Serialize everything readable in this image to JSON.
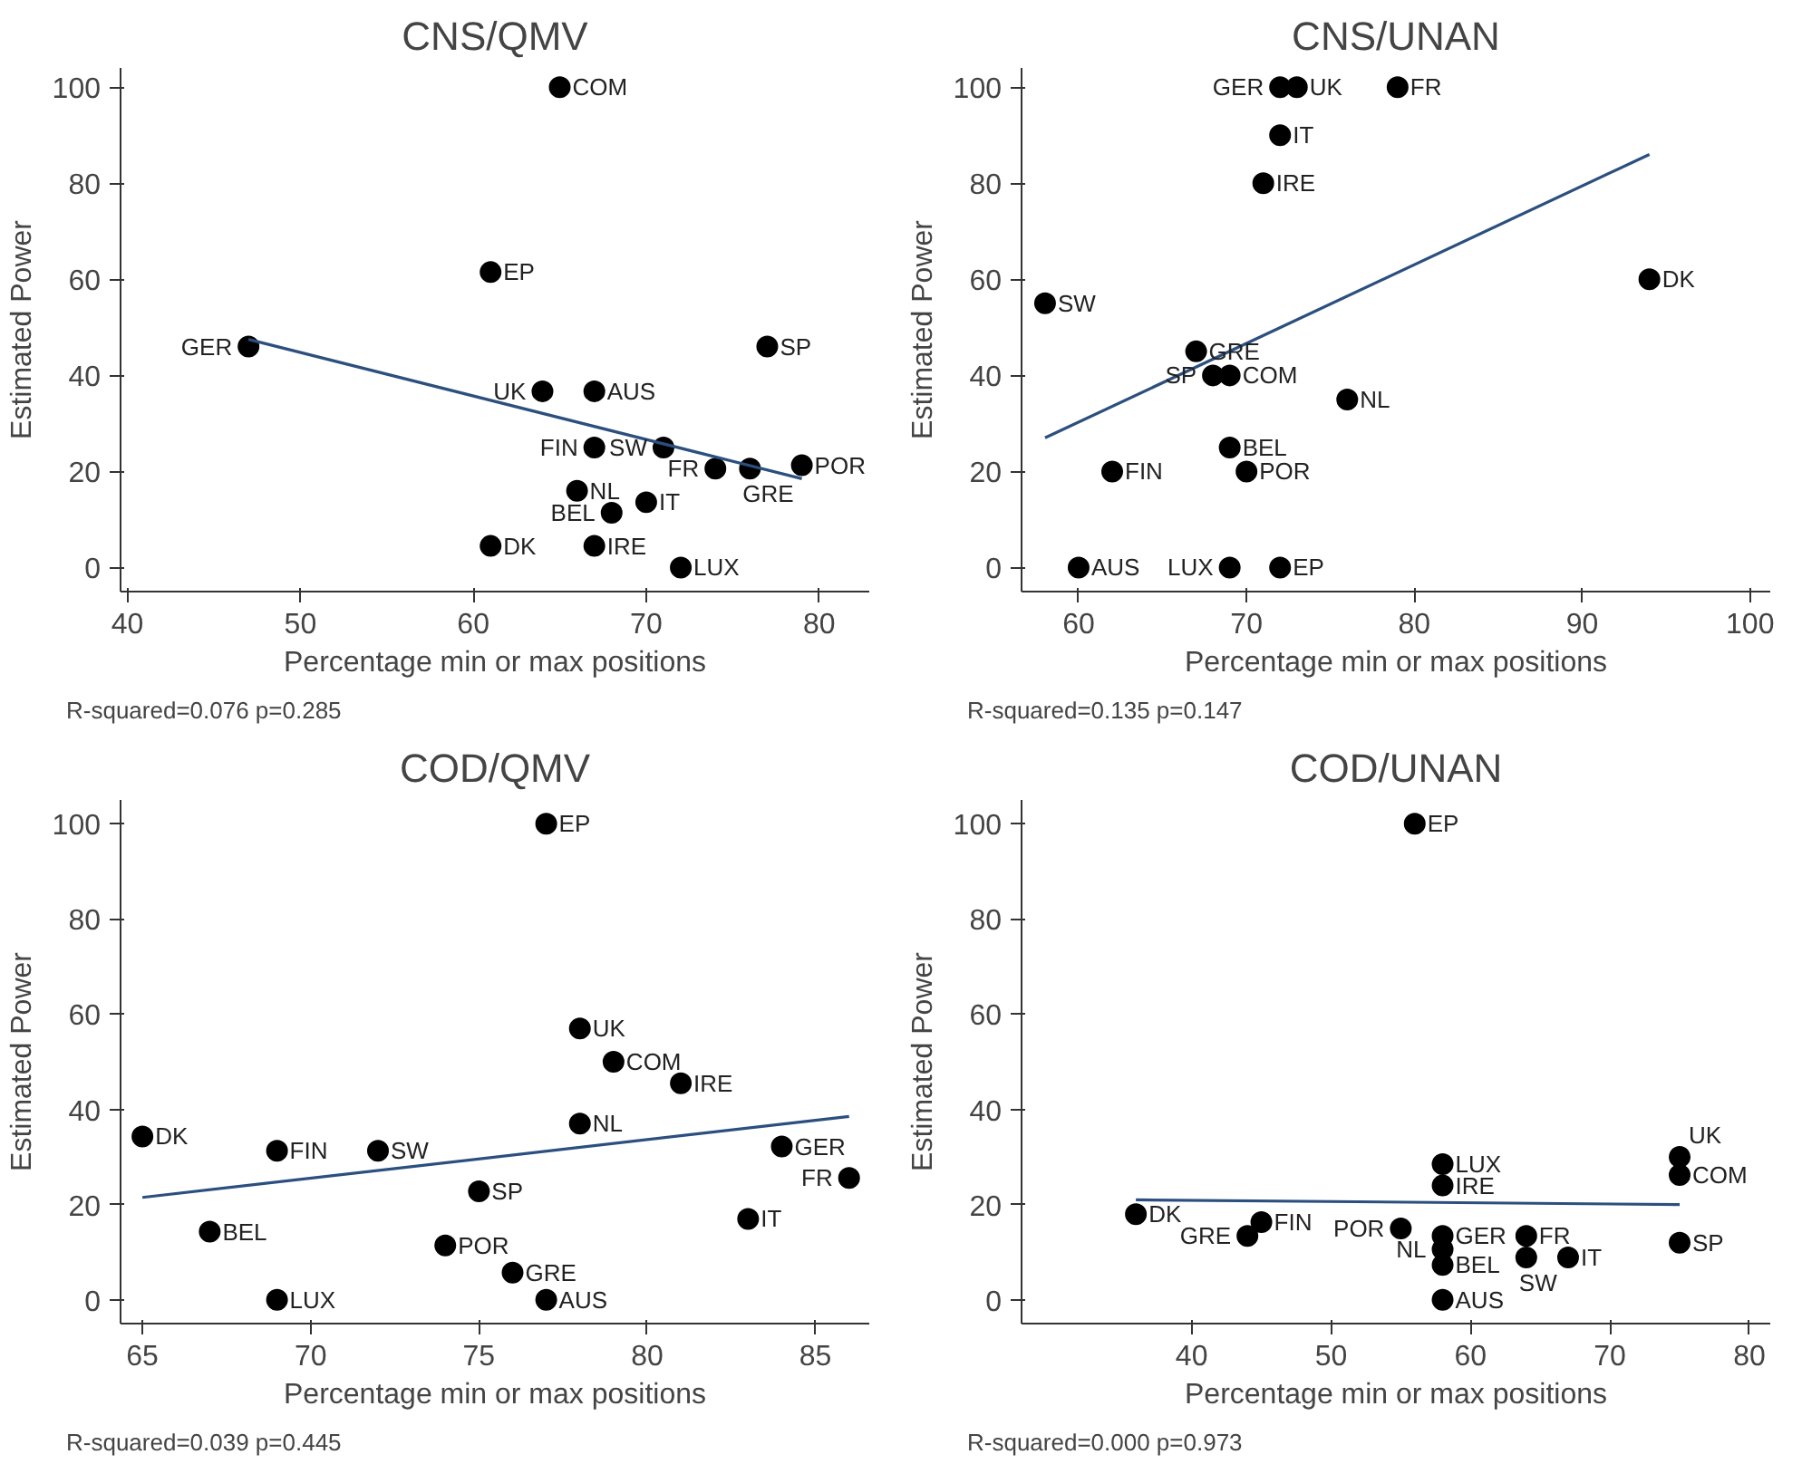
{
  "chart_data": [
    {
      "type": "scatter",
      "title": "CNS/QMV",
      "xlabel": "Percentage min or max positions",
      "ylabel": "Estimated Power",
      "xlim": [
        39.6,
        82.9
      ],
      "ylim": [
        -5,
        104
      ],
      "xticks": [
        40,
        50,
        60,
        70,
        80
      ],
      "yticks": [
        0,
        20,
        40,
        60,
        80,
        100
      ],
      "grid": false,
      "marker": "circle",
      "series": [
        {
          "type": "scatter",
          "color": "#000000",
          "x": [
            65,
            61,
            47,
            77,
            64,
            67,
            67,
            71,
            74,
            76,
            79,
            66,
            70,
            68,
            61,
            67,
            72
          ],
          "values": [
            100,
            61.5,
            46,
            46,
            36.7,
            36.7,
            25,
            25,
            20.6,
            20.6,
            21.3,
            16,
            13.6,
            11.4,
            4.5,
            4.5,
            0
          ]
        },
        {
          "type": "line",
          "marker": "none",
          "color": "#2b4f7e",
          "x": [
            47,
            79
          ],
          "values": [
            47.5,
            18.5
          ]
        }
      ],
      "annotations": [
        {
          "text": "COM",
          "x": 65,
          "y": 100
        },
        {
          "text": "EP",
          "x": 61,
          "y": 61.5
        },
        {
          "text": "GER",
          "x": 47,
          "y": 46
        },
        {
          "text": "SP",
          "x": 77,
          "y": 46
        },
        {
          "text": "UK",
          "x": 64,
          "y": 36.7
        },
        {
          "text": "AUS",
          "x": 67,
          "y": 36.7
        },
        {
          "text": "FIN",
          "x": 67,
          "y": 25
        },
        {
          "text": "SW",
          "x": 71,
          "y": 25
        },
        {
          "text": "FR",
          "x": 74,
          "y": 20.6
        },
        {
          "text": "GRE",
          "x": 76,
          "y": 20.6
        },
        {
          "text": "POR",
          "x": 79,
          "y": 21.3
        },
        {
          "text": "NL",
          "x": 66,
          "y": 16
        },
        {
          "text": "IT",
          "x": 70,
          "y": 13.6
        },
        {
          "text": "BEL",
          "x": 68,
          "y": 11.4
        },
        {
          "text": "DK",
          "x": 61,
          "y": 4.5
        },
        {
          "text": "IRE",
          "x": 67,
          "y": 4.5
        },
        {
          "text": "LUX",
          "x": 72,
          "y": 0
        },
        "R-squared=0.076  p=0.285"
      ]
    },
    {
      "type": "scatter",
      "title": "CNS/UNAN",
      "xlabel": "Percentage min or max positions",
      "ylabel": "Estimated Power",
      "xlim": [
        56.6,
        101.2
      ],
      "ylim": [
        -5,
        104
      ],
      "xticks": [
        60,
        70,
        80,
        90,
        100
      ],
      "yticks": [
        0,
        20,
        40,
        60,
        80,
        100
      ],
      "grid": false,
      "marker": "circle",
      "series": [
        {
          "type": "scatter",
          "color": "#000000",
          "x": [
            72,
            73,
            79,
            72,
            71,
            94,
            58,
            67,
            68,
            69,
            76,
            69,
            62,
            70,
            60,
            69,
            72
          ],
          "values": [
            100,
            100,
            100,
            90,
            80,
            60,
            55,
            45,
            40,
            40,
            35,
            25,
            20,
            20,
            0,
            0,
            0
          ]
        },
        {
          "type": "line",
          "marker": "none",
          "color": "#2b4f7e",
          "x": [
            58,
            94
          ],
          "values": [
            27,
            86
          ]
        }
      ],
      "annotations": [
        {
          "text": "GER",
          "x": 72,
          "y": 100
        },
        {
          "text": "UK",
          "x": 73,
          "y": 100
        },
        {
          "text": "FR",
          "x": 79,
          "y": 100
        },
        {
          "text": "IT",
          "x": 72,
          "y": 90
        },
        {
          "text": "IRE",
          "x": 71,
          "y": 80
        },
        {
          "text": "DK",
          "x": 94,
          "y": 60
        },
        {
          "text": "SW",
          "x": 58,
          "y": 55
        },
        {
          "text": "GRE",
          "x": 67,
          "y": 45
        },
        {
          "text": "SP",
          "x": 68,
          "y": 40
        },
        {
          "text": "COM",
          "x": 69,
          "y": 40
        },
        {
          "text": "NL",
          "x": 76,
          "y": 35
        },
        {
          "text": "BEL",
          "x": 69,
          "y": 25
        },
        {
          "text": "FIN",
          "x": 62,
          "y": 20
        },
        {
          "text": "POR",
          "x": 70,
          "y": 20
        },
        {
          "text": "AUS",
          "x": 60,
          "y": 0
        },
        {
          "text": "LUX",
          "x": 69,
          "y": 0
        },
        {
          "text": "EP",
          "x": 72,
          "y": 0
        },
        "R-squared=0.135  p=0.147"
      ]
    },
    {
      "type": "scatter",
      "title": "COD/QMV",
      "xlabel": "Percentage min or max positions",
      "ylabel": "Estimated Power",
      "xlim": [
        64.35,
        86.6
      ],
      "ylim": [
        -5,
        105
      ],
      "xticks": [
        65,
        70,
        75,
        80,
        85
      ],
      "yticks": [
        0,
        20,
        40,
        60,
        80,
        100
      ],
      "grid": false,
      "marker": "circle",
      "series": [
        {
          "type": "scatter",
          "color": "#000000",
          "x": [
            77,
            78,
            79,
            81,
            78,
            65,
            69,
            72,
            84,
            86,
            75,
            83,
            67,
            74,
            76,
            69,
            77
          ],
          "values": [
            100,
            57,
            50,
            45.5,
            37,
            34.3,
            31.3,
            31.3,
            32.2,
            25.6,
            22.8,
            17,
            14.3,
            11.4,
            5.7,
            0,
            0
          ]
        },
        {
          "type": "line",
          "marker": "none",
          "color": "#2b4f7e",
          "x": [
            65,
            86
          ],
          "values": [
            21.5,
            38.5
          ]
        }
      ],
      "annotations": [
        {
          "text": "EP",
          "x": 77,
          "y": 100
        },
        {
          "text": "UK",
          "x": 78,
          "y": 57
        },
        {
          "text": "COM",
          "x": 79,
          "y": 50
        },
        {
          "text": "IRE",
          "x": 81,
          "y": 45.5
        },
        {
          "text": "NL",
          "x": 78,
          "y": 37
        },
        {
          "text": "DK",
          "x": 65,
          "y": 34.3
        },
        {
          "text": "FIN",
          "x": 69,
          "y": 31.3
        },
        {
          "text": "SW",
          "x": 72,
          "y": 31.3
        },
        {
          "text": "GER",
          "x": 84,
          "y": 32.2
        },
        {
          "text": "FR",
          "x": 86,
          "y": 25.6
        },
        {
          "text": "SP",
          "x": 75,
          "y": 22.8
        },
        {
          "text": "IT",
          "x": 83,
          "y": 17
        },
        {
          "text": "BEL",
          "x": 67,
          "y": 14.3
        },
        {
          "text": "POR",
          "x": 74,
          "y": 11.4
        },
        {
          "text": "GRE",
          "x": 76,
          "y": 5.7
        },
        {
          "text": "LUX",
          "x": 69,
          "y": 0
        },
        {
          "text": "AUS",
          "x": 77,
          "y": 0
        },
        "R-squared=0.039  p=0.445"
      ]
    },
    {
      "type": "scatter",
      "title": "COD/UNAN",
      "xlabel": "Percentage min or max positions",
      "ylabel": "Estimated Power",
      "xlim": [
        27.8,
        81.5
      ],
      "ylim": [
        -5,
        105
      ],
      "xticks": [
        40,
        50,
        60,
        70,
        80
      ],
      "yticks": [
        0,
        20,
        40,
        60,
        80,
        100
      ],
      "grid": false,
      "marker": "circle",
      "series": [
        {
          "type": "scatter",
          "color": "#000000",
          "x": [
            56,
            75,
            75,
            58,
            58,
            36,
            44,
            45,
            55,
            58,
            58,
            58,
            64,
            64,
            67,
            75,
            58
          ],
          "values": [
            100,
            30,
            26.2,
            28.5,
            24,
            18,
            13.4,
            16.3,
            15,
            13.4,
            10.6,
            7.3,
            13.4,
            8.9,
            8.9,
            12,
            0
          ]
        },
        {
          "type": "line",
          "marker": "none",
          "color": "#2b4f7e",
          "x": [
            36,
            75
          ],
          "values": [
            21,
            20
          ]
        }
      ],
      "annotations": [
        {
          "text": "EP",
          "x": 56,
          "y": 100
        },
        {
          "text": "UK",
          "x": 75,
          "y": 30
        },
        {
          "text": "COM",
          "x": 75,
          "y": 26.2
        },
        {
          "text": "LUX",
          "x": 58,
          "y": 28.5
        },
        {
          "text": "IRE",
          "x": 58,
          "y": 24
        },
        {
          "text": "DK",
          "x": 36,
          "y": 18
        },
        {
          "text": "GRE",
          "x": 44,
          "y": 13.4
        },
        {
          "text": "FIN",
          "x": 45,
          "y": 16.3
        },
        {
          "text": "POR",
          "x": 55,
          "y": 15
        },
        {
          "text": "GER",
          "x": 58,
          "y": 13.4
        },
        {
          "text": "NL",
          "x": 58,
          "y": 10.6
        },
        {
          "text": "BEL",
          "x": 58,
          "y": 7.3
        },
        {
          "text": "FR",
          "x": 64,
          "y": 13.4
        },
        {
          "text": "SW",
          "x": 64,
          "y": 8.9
        },
        {
          "text": "IT",
          "x": 67,
          "y": 8.9
        },
        {
          "text": "SP",
          "x": 75,
          "y": 12
        },
        {
          "text": "AUS",
          "x": 58,
          "y": 0
        },
        "R-squared=0.000  p=0.973"
      ]
    }
  ]
}
